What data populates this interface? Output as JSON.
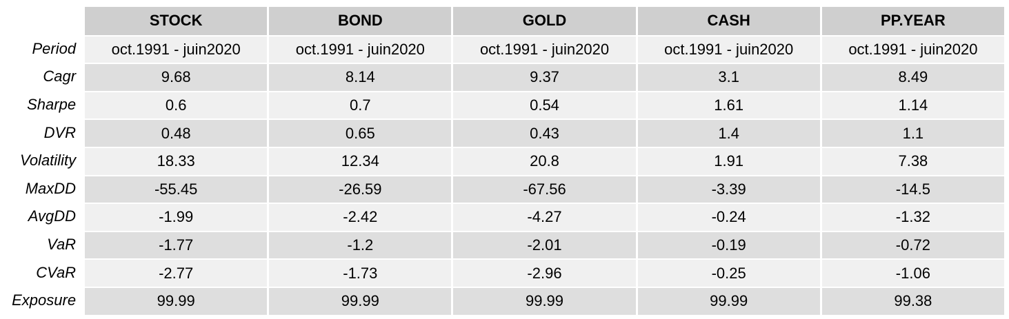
{
  "table": {
    "columns": [
      "STOCK",
      "BOND",
      "GOLD",
      "CASH",
      "PP.YEAR"
    ],
    "rows": [
      {
        "label": "Period",
        "values": [
          "oct.1991 - juin2020",
          "oct.1991 - juin2020",
          "oct.1991 - juin2020",
          "oct.1991 - juin2020",
          "oct.1991 - juin2020"
        ]
      },
      {
        "label": "Cagr",
        "values": [
          "9.68",
          "8.14",
          "9.37",
          "3.1",
          "8.49"
        ]
      },
      {
        "label": "Sharpe",
        "values": [
          "0.6",
          "0.7",
          "0.54",
          "1.61",
          "1.14"
        ]
      },
      {
        "label": "DVR",
        "values": [
          "0.48",
          "0.65",
          "0.43",
          "1.4",
          "1.1"
        ]
      },
      {
        "label": "Volatility",
        "values": [
          "18.33",
          "12.34",
          "20.8",
          "1.91",
          "7.38"
        ]
      },
      {
        "label": "MaxDD",
        "values": [
          "-55.45",
          "-26.59",
          "-67.56",
          "-3.39",
          "-14.5"
        ]
      },
      {
        "label": "AvgDD",
        "values": [
          "-1.99",
          "-2.42",
          "-4.27",
          "-0.24",
          "-1.32"
        ]
      },
      {
        "label": "VaR",
        "values": [
          "-1.77",
          "-1.2",
          "-2.01",
          "-0.19",
          "-0.72"
        ]
      },
      {
        "label": "CVaR",
        "values": [
          "-2.77",
          "-1.73",
          "-2.96",
          "-0.25",
          "-1.06"
        ]
      },
      {
        "label": "Exposure",
        "values": [
          "99.99",
          "99.99",
          "99.99",
          "99.99",
          "99.38"
        ]
      }
    ]
  }
}
